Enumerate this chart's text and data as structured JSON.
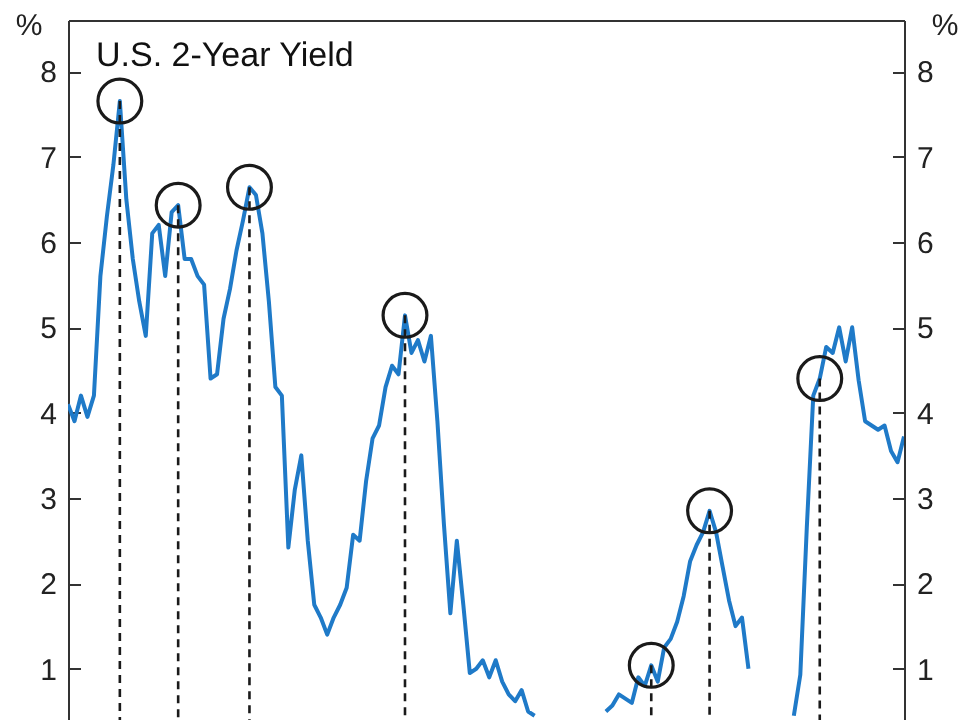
{
  "chart_data": {
    "type": "line",
    "title": "U.S. 2-Year Yield",
    "ylabel": "%",
    "y2label": "%",
    "categories": [
      null,
      null,
      null,
      null,
      null,
      null,
      null,
      null,
      null,
      null,
      null,
      null,
      null,
      null,
      null,
      null,
      null,
      null,
      null,
      null,
      null,
      null,
      null,
      null,
      null,
      null,
      null,
      null,
      null,
      null,
      null,
      null,
      null,
      null,
      null,
      null,
      null,
      null,
      null,
      null,
      null,
      null,
      null,
      null,
      null,
      null,
      null,
      null,
      null,
      null,
      null,
      null,
      null,
      null,
      null,
      null,
      null,
      null,
      null,
      null,
      null,
      null,
      null,
      null,
      null,
      null,
      null,
      null,
      null,
      null,
      null,
      null,
      null,
      null,
      null,
      null,
      null,
      null,
      null,
      null,
      null,
      null,
      null,
      null,
      null,
      null,
      null,
      null,
      null,
      null,
      null,
      null,
      null,
      null,
      null,
      null,
      null,
      null,
      null,
      null,
      null,
      null,
      null,
      null,
      null,
      null,
      null,
      null,
      null,
      null,
      null,
      null,
      null,
      null,
      null,
      null,
      null,
      null,
      null,
      null,
      null,
      null,
      null,
      null,
      null,
      null,
      null,
      null,
      null,
      null
    ],
    "series": [
      {
        "color": "#1f7ac8",
        "values": [
          4.1,
          3.9,
          4.2,
          3.95,
          4.2,
          5.6,
          6.3,
          6.9,
          7.65,
          6.5,
          5.8,
          5.3,
          4.9,
          6.1,
          6.2,
          5.6,
          6.35,
          6.43,
          5.8,
          5.8,
          5.6,
          5.5,
          4.4,
          4.45,
          5.1,
          5.45,
          5.9,
          6.25,
          6.64,
          6.55,
          6.1,
          5.3,
          4.3,
          4.2,
          2.42,
          3.1,
          3.5,
          2.5,
          1.75,
          1.6,
          1.4,
          1.6,
          1.75,
          1.95,
          2.57,
          2.5,
          3.2,
          3.7,
          3.85,
          4.3,
          4.55,
          4.45,
          5.14,
          4.7,
          4.85,
          4.6,
          4.9,
          3.9,
          2.7,
          1.65,
          2.5,
          1.75,
          0.95,
          1.0,
          1.1,
          0.9,
          1.1,
          0.85,
          0.7,
          0.62,
          0.75,
          0.5,
          0.45,
          null,
          null,
          null,
          null,
          null,
          null,
          null,
          null,
          null,
          null,
          null,
          null,
          null,
          null,
          null,
          null,
          null,
          null,
          null,
          null,
          null,
          null,
          null,
          null,
          null,
          null,
          null,
          null,
          null,
          null,
          null,
          null,
          null,
          null,
          null,
          null,
          null,
          null,
          null,
          null,
          null,
          null,
          null,
          null,
          null,
          null,
          null,
          null,
          null,
          null,
          null,
          null,
          null,
          null,
          null,
          null,
          null
        ]
      },
      {
        "color": "#1f7ac8",
        "values": [
          null,
          null,
          null,
          null,
          null,
          null,
          null,
          null,
          null,
          null,
          null,
          null,
          null,
          null,
          null,
          null,
          null,
          null,
          null,
          null,
          null,
          null,
          null,
          null,
          null,
          null,
          null,
          null,
          null,
          null,
          null,
          null,
          null,
          null,
          null,
          null,
          null,
          null,
          null,
          null,
          null,
          null,
          null,
          null,
          null,
          null,
          null,
          null,
          null,
          null,
          null,
          null,
          null,
          null,
          null,
          null,
          null,
          null,
          null,
          null,
          null,
          null,
          null,
          null,
          null,
          null,
          null,
          null,
          null,
          null,
          null,
          null,
          null,
          null,
          null,
          null,
          null,
          null,
          null,
          null,
          null,
          null,
          null,
          0.5,
          0.57,
          0.7,
          0.65,
          0.6,
          0.9,
          0.8,
          1.04,
          0.85,
          1.25,
          1.35,
          1.55,
          1.85,
          2.26,
          2.45,
          2.6,
          2.85,
          2.6,
          2.2,
          1.8,
          1.5,
          1.6,
          1.0,
          null,
          null,
          null,
          null,
          null,
          null,
          null,
          null,
          null,
          null,
          null,
          null,
          null,
          null,
          null,
          null,
          null,
          null,
          null,
          null,
          null,
          null,
          null,
          null
        ]
      },
      {
        "color": "#1f7ac8",
        "values": [
          null,
          null,
          null,
          null,
          null,
          null,
          null,
          null,
          null,
          null,
          null,
          null,
          null,
          null,
          null,
          null,
          null,
          null,
          null,
          null,
          null,
          null,
          null,
          null,
          null,
          null,
          null,
          null,
          null,
          null,
          null,
          null,
          null,
          null,
          null,
          null,
          null,
          null,
          null,
          null,
          null,
          null,
          null,
          null,
          null,
          null,
          null,
          null,
          null,
          null,
          null,
          null,
          null,
          null,
          null,
          null,
          null,
          null,
          null,
          null,
          null,
          null,
          null,
          null,
          null,
          null,
          null,
          null,
          null,
          null,
          null,
          null,
          null,
          null,
          null,
          null,
          null,
          null,
          null,
          null,
          null,
          null,
          null,
          null,
          null,
          null,
          null,
          null,
          null,
          null,
          null,
          null,
          null,
          null,
          null,
          null,
          null,
          null,
          null,
          null,
          null,
          null,
          null,
          null,
          null,
          null,
          null,
          null,
          null,
          null,
          null,
          null,
          0.45,
          0.93,
          2.65,
          4.2,
          4.4,
          4.77,
          4.7,
          5.0,
          4.6,
          5.0,
          4.38,
          3.9,
          3.85,
          3.8,
          3.85,
          3.55,
          3.42,
          3.72
        ]
      },
      {
        "type": "scatter",
        "axis": "y2",
        "color": "#1a1a1a",
        "marker": "circle",
        "line_style": "dashed",
        "values": [
          null,
          null,
          null,
          null,
          null,
          null,
          null,
          null,
          7.65,
          null,
          null,
          null,
          null,
          null,
          null,
          null,
          null,
          6.43,
          null,
          null,
          null,
          null,
          null,
          null,
          null,
          null,
          null,
          null,
          6.64,
          null,
          null,
          null,
          null,
          null,
          null,
          null,
          null,
          null,
          null,
          null,
          null,
          null,
          null,
          null,
          null,
          null,
          null,
          null,
          null,
          null,
          null,
          null,
          5.14,
          null,
          null,
          null,
          null,
          null,
          null,
          null,
          null,
          null,
          null,
          null,
          null,
          null,
          null,
          null,
          null,
          null,
          null,
          null,
          null,
          null,
          null,
          null,
          null,
          null,
          null,
          null,
          null,
          null,
          null,
          null,
          null,
          null,
          null,
          null,
          null,
          null,
          1.04,
          null,
          null,
          null,
          null,
          null,
          null,
          null,
          null,
          2.85,
          null,
          null,
          null,
          null,
          null,
          null,
          null,
          null,
          null,
          null,
          null,
          null,
          null,
          null,
          null,
          null,
          4.4,
          null,
          null,
          null,
          null,
          null,
          null,
          null,
          null,
          null,
          null,
          null,
          null,
          null
        ]
      }
    ],
    "ylim": [
      0.4,
      8.6
    ],
    "yticks": [
      1,
      2,
      3,
      4,
      5,
      6,
      7,
      8
    ],
    "y2lim": [
      0.4,
      8.6
    ],
    "y2ticks": [
      1,
      2,
      3,
      4,
      5,
      6,
      7,
      8
    ],
    "tick_labels": "y",
    "grid": false
  }
}
